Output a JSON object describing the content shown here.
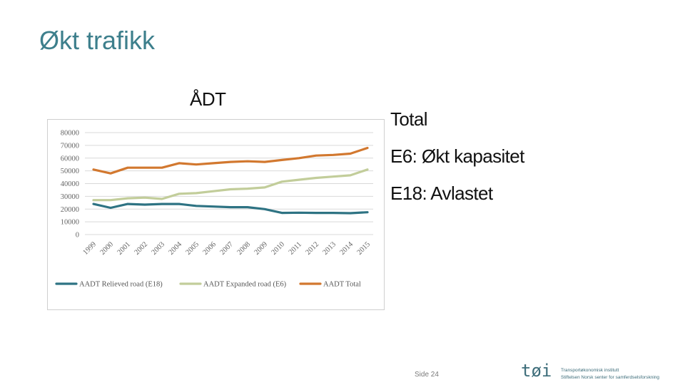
{
  "slide": {
    "title": "Økt trafikk",
    "page_number": "Side 24"
  },
  "bullets": [
    "Total",
    "E6: Økt kapasitet",
    "E18: Avlastet"
  ],
  "logo": {
    "mark": "tøi",
    "line1": "Transportøkonomisk institutt",
    "line2": "Stiftelsen Norsk senter for samferdselsforskning",
    "color": "#3d6d7a"
  },
  "chart_data": {
    "type": "line",
    "title": "ÅDT",
    "xlabel": "",
    "ylabel": "",
    "ylim": [
      0,
      80000
    ],
    "yticks": [
      0,
      10000,
      20000,
      30000,
      40000,
      50000,
      60000,
      70000,
      80000
    ],
    "grid": true,
    "legend_position": "bottom",
    "categories": [
      "1999",
      "2000",
      "2001",
      "2002",
      "2003",
      "2004",
      "2005",
      "2006",
      "2007",
      "2008",
      "2009",
      "2010",
      "2011",
      "2012",
      "2013",
      "2014",
      "2015"
    ],
    "series": [
      {
        "name": "AADT Relieved road (E18)",
        "color": "#2e7383",
        "values": [
          24000,
          21000,
          24000,
          23500,
          24000,
          24000,
          22500,
          22000,
          21500,
          21500,
          20000,
          17000,
          17200,
          17000,
          17000,
          16800,
          17500
        ]
      },
      {
        "name": "AADT Expanded road (E6)",
        "color": "#c2cd9a",
        "values": [
          27000,
          27000,
          28500,
          29000,
          28000,
          32000,
          32500,
          34000,
          35500,
          36000,
          37000,
          41500,
          43000,
          44500,
          45500,
          46500,
          51000
        ]
      },
      {
        "name": "AADT Total",
        "color": "#d2782f",
        "values": [
          51000,
          48000,
          52500,
          52500,
          52500,
          56000,
          55000,
          56000,
          57000,
          57500,
          57000,
          58500,
          60000,
          62000,
          62500,
          63500,
          68000
        ]
      }
    ]
  }
}
